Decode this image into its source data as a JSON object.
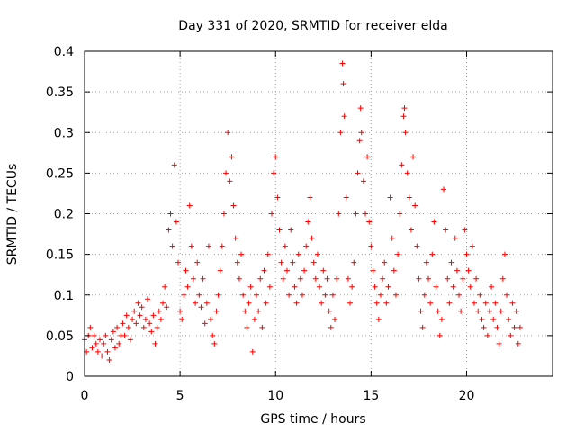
{
  "chart_data": {
    "type": "scatter",
    "title": "Day 331 of 2020, SRMTID for receiver elda",
    "xlabel": "GPS time / hours",
    "ylabel": "SRMTID / TECUs",
    "xlim": [
      0,
      24.5
    ],
    "ylim": [
      0,
      0.4
    ],
    "x_ticks": [
      0,
      5,
      10,
      15,
      20
    ],
    "x_tick_labels": [
      "0",
      "5",
      "10",
      "15",
      "20"
    ],
    "y_ticks": [
      0,
      0.05,
      0.1,
      0.15,
      0.2,
      0.25,
      0.3,
      0.35,
      0.4
    ],
    "y_tick_labels": [
      "0",
      "0.05",
      "0.1",
      "0.15",
      "0.2",
      "0.25",
      "0.3",
      "0.35",
      "0.4"
    ],
    "grid": true,
    "marker": "plus",
    "marker_color": "#ff0000",
    "series": [
      {
        "name": "SRMTID",
        "points": [
          [
            0.0,
            0.045
          ],
          [
            0.1,
            0.03
          ],
          [
            0.2,
            0.05
          ],
          [
            0.3,
            0.06
          ],
          [
            0.4,
            0.035
          ],
          [
            0.5,
            0.05
          ],
          [
            0.6,
            0.04
          ],
          [
            0.7,
            0.03
          ],
          [
            0.8,
            0.045
          ],
          [
            0.9,
            0.025
          ],
          [
            1.0,
            0.04
          ],
          [
            1.1,
            0.05
          ],
          [
            1.2,
            0.03
          ],
          [
            1.3,
            0.02
          ],
          [
            1.4,
            0.045
          ],
          [
            1.5,
            0.055
          ],
          [
            1.6,
            0.035
          ],
          [
            1.7,
            0.06
          ],
          [
            1.8,
            0.04
          ],
          [
            1.9,
            0.05
          ],
          [
            2.0,
            0.065
          ],
          [
            2.1,
            0.05
          ],
          [
            2.2,
            0.075
          ],
          [
            2.3,
            0.06
          ],
          [
            2.4,
            0.045
          ],
          [
            2.5,
            0.07
          ],
          [
            2.6,
            0.08
          ],
          [
            2.7,
            0.065
          ],
          [
            2.8,
            0.09
          ],
          [
            2.9,
            0.075
          ],
          [
            3.0,
            0.085
          ],
          [
            3.1,
            0.06
          ],
          [
            3.2,
            0.07
          ],
          [
            3.3,
            0.095
          ],
          [
            3.4,
            0.065
          ],
          [
            3.5,
            0.055
          ],
          [
            3.6,
            0.075
          ],
          [
            3.7,
            0.04
          ],
          [
            3.8,
            0.06
          ],
          [
            3.9,
            0.08
          ],
          [
            4.0,
            0.07
          ],
          [
            4.1,
            0.09
          ],
          [
            4.2,
            0.11
          ],
          [
            4.3,
            0.085
          ],
          [
            4.4,
            0.18
          ],
          [
            4.5,
            0.2
          ],
          [
            4.6,
            0.16
          ],
          [
            4.7,
            0.26
          ],
          [
            4.8,
            0.19
          ],
          [
            4.9,
            0.14
          ],
          [
            5.0,
            0.08
          ],
          [
            5.1,
            0.07
          ],
          [
            5.2,
            0.1
          ],
          [
            5.3,
            0.13
          ],
          [
            5.4,
            0.11
          ],
          [
            5.5,
            0.21
          ],
          [
            5.6,
            0.16
          ],
          [
            5.7,
            0.12
          ],
          [
            5.8,
            0.09
          ],
          [
            5.9,
            0.14
          ],
          [
            6.0,
            0.1
          ],
          [
            6.1,
            0.085
          ],
          [
            6.2,
            0.12
          ],
          [
            6.3,
            0.065
          ],
          [
            6.4,
            0.09
          ],
          [
            6.5,
            0.16
          ],
          [
            6.6,
            0.07
          ],
          [
            6.7,
            0.05
          ],
          [
            6.8,
            0.04
          ],
          [
            6.9,
            0.08
          ],
          [
            7.0,
            0.1
          ],
          [
            7.1,
            0.13
          ],
          [
            7.2,
            0.16
          ],
          [
            7.3,
            0.2
          ],
          [
            7.4,
            0.25
          ],
          [
            7.5,
            0.3
          ],
          [
            7.6,
            0.24
          ],
          [
            7.7,
            0.27
          ],
          [
            7.8,
            0.21
          ],
          [
            7.9,
            0.17
          ],
          [
            8.0,
            0.14
          ],
          [
            8.1,
            0.12
          ],
          [
            8.2,
            0.15
          ],
          [
            8.3,
            0.1
          ],
          [
            8.4,
            0.08
          ],
          [
            8.5,
            0.06
          ],
          [
            8.6,
            0.09
          ],
          [
            8.7,
            0.11
          ],
          [
            8.8,
            0.03
          ],
          [
            8.9,
            0.07
          ],
          [
            9.0,
            0.1
          ],
          [
            9.1,
            0.08
          ],
          [
            9.2,
            0.12
          ],
          [
            9.3,
            0.06
          ],
          [
            9.4,
            0.13
          ],
          [
            9.5,
            0.09
          ],
          [
            9.6,
            0.15
          ],
          [
            9.7,
            0.11
          ],
          [
            9.8,
            0.2
          ],
          [
            9.9,
            0.25
          ],
          [
            10.0,
            0.27
          ],
          [
            10.1,
            0.22
          ],
          [
            10.2,
            0.18
          ],
          [
            10.3,
            0.14
          ],
          [
            10.4,
            0.12
          ],
          [
            10.5,
            0.16
          ],
          [
            10.6,
            0.13
          ],
          [
            10.7,
            0.1
          ],
          [
            10.8,
            0.18
          ],
          [
            10.9,
            0.14
          ],
          [
            11.0,
            0.11
          ],
          [
            11.1,
            0.09
          ],
          [
            11.2,
            0.15
          ],
          [
            11.3,
            0.12
          ],
          [
            11.4,
            0.1
          ],
          [
            11.5,
            0.13
          ],
          [
            11.6,
            0.16
          ],
          [
            11.7,
            0.19
          ],
          [
            11.8,
            0.22
          ],
          [
            11.9,
            0.17
          ],
          [
            12.0,
            0.14
          ],
          [
            12.1,
            0.12
          ],
          [
            12.2,
            0.15
          ],
          [
            12.3,
            0.11
          ],
          [
            12.4,
            0.09
          ],
          [
            12.5,
            0.13
          ],
          [
            12.6,
            0.1
          ],
          [
            12.7,
            0.12
          ],
          [
            12.8,
            0.08
          ],
          [
            12.9,
            0.06
          ],
          [
            13.0,
            0.1
          ],
          [
            13.1,
            0.07
          ],
          [
            13.2,
            0.12
          ],
          [
            13.3,
            0.2
          ],
          [
            13.4,
            0.3
          ],
          [
            13.5,
            0.385
          ],
          [
            13.55,
            0.36
          ],
          [
            13.6,
            0.32
          ],
          [
            13.7,
            0.22
          ],
          [
            13.8,
            0.12
          ],
          [
            13.9,
            0.09
          ],
          [
            14.0,
            0.11
          ],
          [
            14.1,
            0.14
          ],
          [
            14.2,
            0.2
          ],
          [
            14.3,
            0.25
          ],
          [
            14.4,
            0.29
          ],
          [
            14.45,
            0.33
          ],
          [
            14.5,
            0.3
          ],
          [
            14.6,
            0.24
          ],
          [
            14.7,
            0.2
          ],
          [
            14.8,
            0.27
          ],
          [
            14.9,
            0.19
          ],
          [
            15.0,
            0.16
          ],
          [
            15.1,
            0.13
          ],
          [
            15.2,
            0.11
          ],
          [
            15.3,
            0.09
          ],
          [
            15.4,
            0.07
          ],
          [
            15.5,
            0.1
          ],
          [
            15.6,
            0.12
          ],
          [
            15.7,
            0.14
          ],
          [
            15.8,
            0.09
          ],
          [
            15.9,
            0.11
          ],
          [
            16.0,
            0.22
          ],
          [
            16.1,
            0.17
          ],
          [
            16.2,
            0.13
          ],
          [
            16.3,
            0.1
          ],
          [
            16.4,
            0.15
          ],
          [
            16.5,
            0.2
          ],
          [
            16.6,
            0.26
          ],
          [
            16.7,
            0.32
          ],
          [
            16.75,
            0.33
          ],
          [
            16.8,
            0.3
          ],
          [
            16.9,
            0.25
          ],
          [
            17.0,
            0.22
          ],
          [
            17.1,
            0.18
          ],
          [
            17.2,
            0.27
          ],
          [
            17.3,
            0.21
          ],
          [
            17.4,
            0.16
          ],
          [
            17.5,
            0.12
          ],
          [
            17.6,
            0.08
          ],
          [
            17.7,
            0.06
          ],
          [
            17.8,
            0.1
          ],
          [
            17.9,
            0.14
          ],
          [
            18.0,
            0.12
          ],
          [
            18.1,
            0.09
          ],
          [
            18.2,
            0.15
          ],
          [
            18.3,
            0.19
          ],
          [
            18.4,
            0.11
          ],
          [
            18.5,
            0.08
          ],
          [
            18.6,
            0.05
          ],
          [
            18.7,
            0.07
          ],
          [
            18.8,
            0.23
          ],
          [
            18.9,
            0.18
          ],
          [
            19.0,
            0.12
          ],
          [
            19.1,
            0.09
          ],
          [
            19.2,
            0.14
          ],
          [
            19.3,
            0.11
          ],
          [
            19.4,
            0.17
          ],
          [
            19.5,
            0.13
          ],
          [
            19.6,
            0.1
          ],
          [
            19.7,
            0.08
          ],
          [
            19.8,
            0.12
          ],
          [
            19.9,
            0.18
          ],
          [
            20.0,
            0.15
          ],
          [
            20.1,
            0.13
          ],
          [
            20.2,
            0.11
          ],
          [
            20.3,
            0.16
          ],
          [
            20.4,
            0.09
          ],
          [
            20.5,
            0.12
          ],
          [
            20.6,
            0.08
          ],
          [
            20.7,
            0.1
          ],
          [
            20.8,
            0.07
          ],
          [
            20.9,
            0.06
          ],
          [
            21.0,
            0.09
          ],
          [
            21.1,
            0.05
          ],
          [
            21.2,
            0.08
          ],
          [
            21.3,
            0.11
          ],
          [
            21.4,
            0.07
          ],
          [
            21.5,
            0.09
          ],
          [
            21.6,
            0.06
          ],
          [
            21.7,
            0.04
          ],
          [
            21.8,
            0.08
          ],
          [
            21.9,
            0.12
          ],
          [
            22.0,
            0.15
          ],
          [
            22.1,
            0.1
          ],
          [
            22.2,
            0.07
          ],
          [
            22.3,
            0.05
          ],
          [
            22.4,
            0.09
          ],
          [
            22.5,
            0.06
          ],
          [
            22.6,
            0.08
          ],
          [
            22.7,
            0.04
          ],
          [
            22.8,
            0.06
          ]
        ]
      }
    ]
  }
}
